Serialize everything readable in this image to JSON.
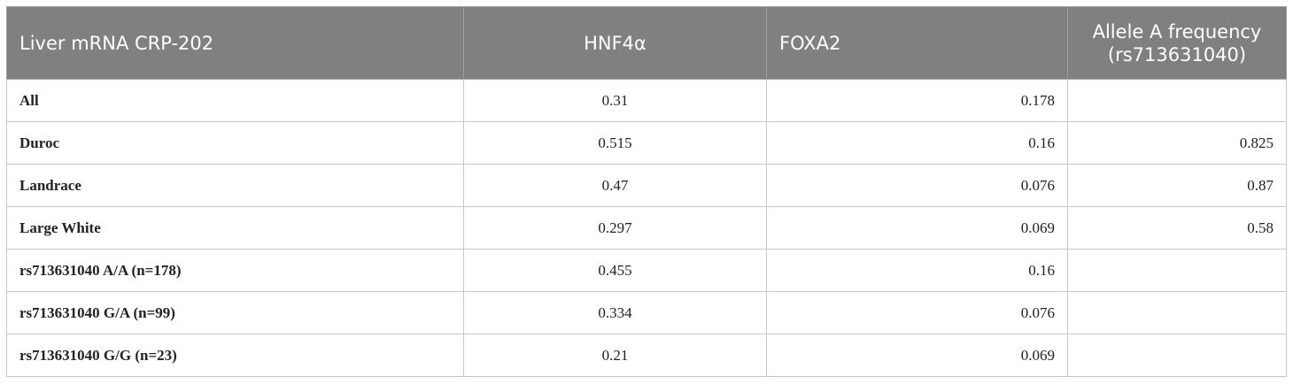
{
  "table": {
    "header": [
      "Liver mRNA CRP-202",
      "HNF4α",
      "FOXA2",
      "Allele A frequency (rs713631040)"
    ],
    "rows": [
      [
        "All",
        "0.31",
        "0.178",
        null
      ],
      [
        "Duroc",
        "0.515",
        "0.16",
        "0.825"
      ],
      [
        "Landrace",
        "0.47",
        "0.076",
        "0.87"
      ],
      [
        "Large White",
        "0.297",
        "0.069",
        "0.58"
      ],
      [
        "rs713631040 A/A (n=178)",
        "0.455",
        "0.16",
        null
      ],
      [
        "rs713631040 G/A (n=99)",
        "0.334",
        "0.076",
        null
      ],
      [
        "rs713631040 G/G (n=23)",
        "0.21",
        "0.069",
        null
      ]
    ]
  }
}
